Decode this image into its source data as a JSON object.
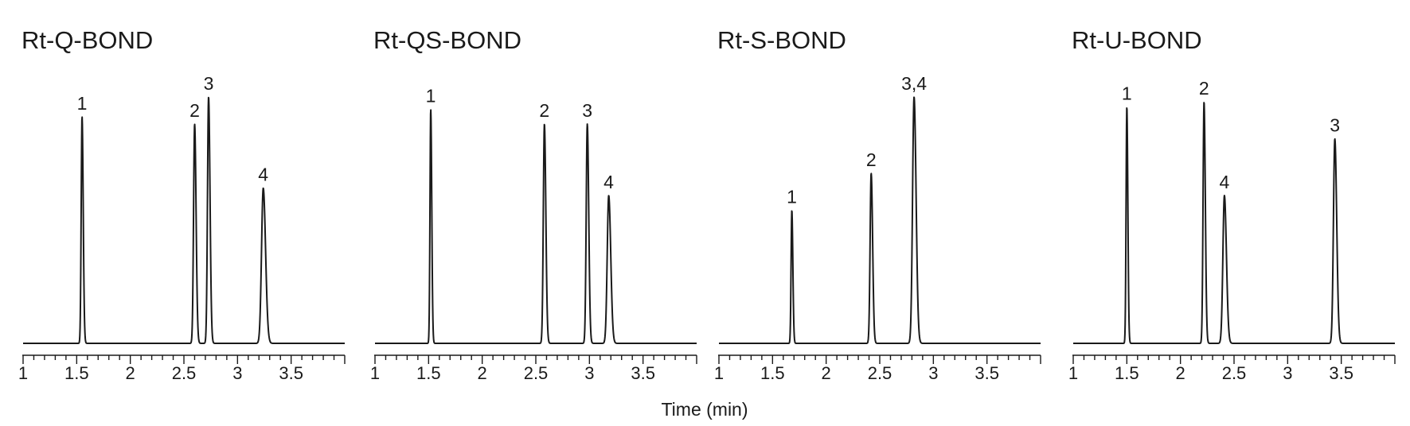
{
  "chart_data": {
    "type": "line",
    "xlabel": "Time (min)",
    "panels": [
      {
        "title": "Rt-Q-BOND",
        "xlim": [
          1,
          4
        ],
        "xticks": [
          {
            "value": 1,
            "label": "1"
          },
          {
            "value": 1.5,
            "label": "1.5"
          },
          {
            "value": 2,
            "label": "2"
          },
          {
            "value": 2.5,
            "label": "2.5"
          },
          {
            "value": 3,
            "label": "3"
          },
          {
            "value": 3.5,
            "label": "3.5"
          }
        ],
        "peaks": [
          {
            "label": "1",
            "time": 1.55,
            "height": 0.92,
            "width": 0.008
          },
          {
            "label": "2",
            "time": 2.6,
            "height": 0.89,
            "width": 0.01
          },
          {
            "label": "3",
            "time": 2.73,
            "height": 1.0,
            "width": 0.01
          },
          {
            "label": "4",
            "time": 3.24,
            "height": 0.63,
            "width": 0.016
          }
        ]
      },
      {
        "title": "Rt-QS-BOND",
        "xlim": [
          1,
          4
        ],
        "xticks": [
          {
            "value": 1,
            "label": "1"
          },
          {
            "value": 1.5,
            "label": "1.5"
          },
          {
            "value": 2,
            "label": "2"
          },
          {
            "value": 2.5,
            "label": "2.5"
          },
          {
            "value": 3,
            "label": "3"
          },
          {
            "value": 3.5,
            "label": "3.5"
          }
        ],
        "peaks": [
          {
            "label": "1",
            "time": 1.52,
            "height": 0.95,
            "width": 0.007
          },
          {
            "label": "2",
            "time": 2.58,
            "height": 0.89,
            "width": 0.01
          },
          {
            "label": "3",
            "time": 2.98,
            "height": 0.89,
            "width": 0.01
          },
          {
            "label": "4",
            "time": 3.18,
            "height": 0.6,
            "width": 0.014
          }
        ]
      },
      {
        "title": "Rt-S-BOND",
        "xlim": [
          1,
          4
        ],
        "xticks": [
          {
            "value": 1,
            "label": "1"
          },
          {
            "value": 1.5,
            "label": "1.5"
          },
          {
            "value": 2,
            "label": "2"
          },
          {
            "value": 2.5,
            "label": "2.5"
          },
          {
            "value": 3,
            "label": "3"
          },
          {
            "value": 3.5,
            "label": "3.5"
          }
        ],
        "peaks": [
          {
            "label": "1",
            "time": 1.68,
            "height": 0.54,
            "width": 0.007
          },
          {
            "label": "2",
            "time": 2.42,
            "height": 0.69,
            "width": 0.01
          },
          {
            "label": "3,4",
            "time": 2.82,
            "height": 1.0,
            "width": 0.014
          }
        ]
      },
      {
        "title": "Rt-U-BOND",
        "xlim": [
          1,
          4
        ],
        "xticks": [
          {
            "value": 1,
            "label": "1"
          },
          {
            "value": 1.5,
            "label": "1.5"
          },
          {
            "value": 2,
            "label": "2"
          },
          {
            "value": 2.5,
            "label": "2.5"
          },
          {
            "value": 3,
            "label": "3"
          },
          {
            "value": 3.5,
            "label": "3.5"
          }
        ],
        "peaks": [
          {
            "label": "1",
            "time": 1.5,
            "height": 0.96,
            "width": 0.007
          },
          {
            "label": "2",
            "time": 2.22,
            "height": 0.98,
            "width": 0.009
          },
          {
            "label": "4",
            "time": 2.41,
            "height": 0.6,
            "width": 0.014
          },
          {
            "label": "3",
            "time": 3.44,
            "height": 0.83,
            "width": 0.013
          }
        ]
      }
    ]
  }
}
